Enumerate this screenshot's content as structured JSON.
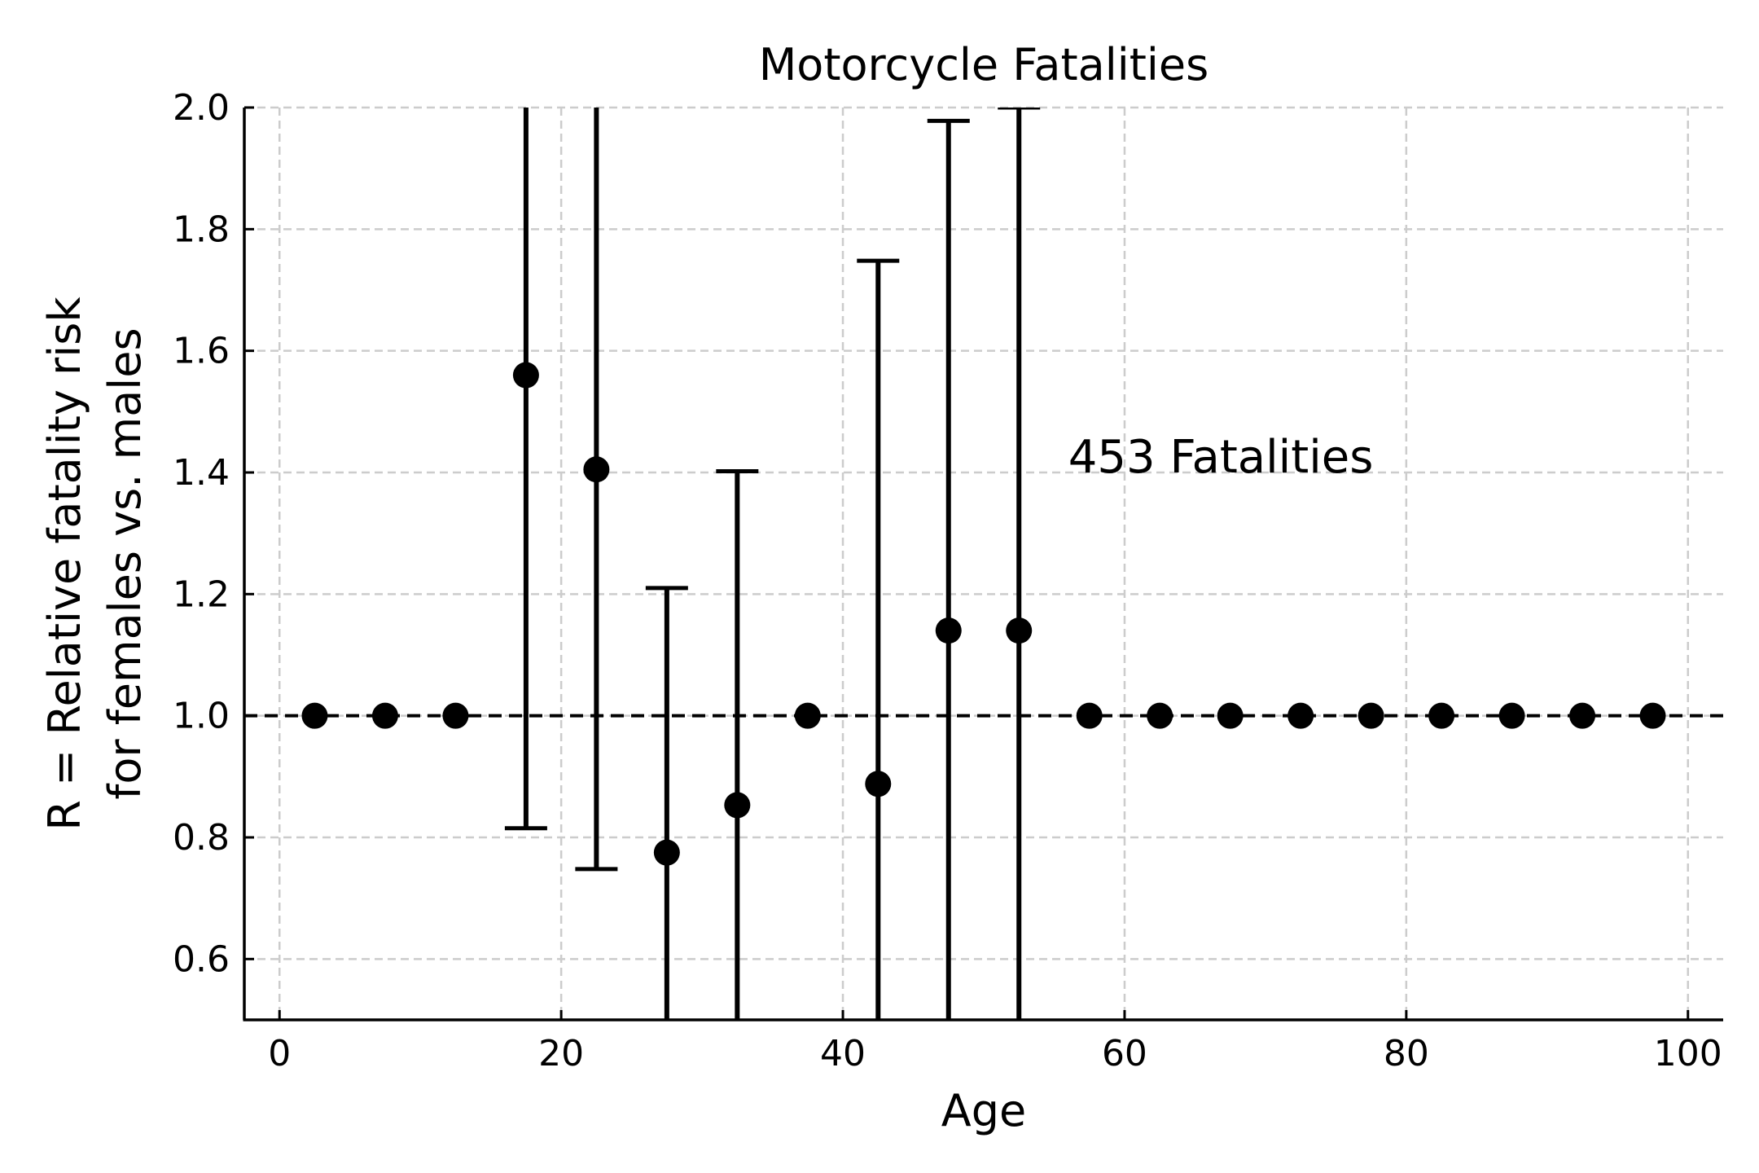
{
  "chart_data": {
    "type": "scatter",
    "title": "Motorcycle Fatalities",
    "xlabel": "Age",
    "ylabel_lines": [
      "R = Relative fatality risk",
      "for females vs. males"
    ],
    "xlim": [
      -2.5,
      102.5
    ],
    "ylim": [
      0.5,
      2.0
    ],
    "xticks": [
      0,
      20,
      40,
      60,
      80,
      100
    ],
    "xtick_labels": [
      "0",
      "20",
      "40",
      "60",
      "80",
      "100"
    ],
    "yticks": [
      0.6,
      0.8,
      1.0,
      1.2,
      1.4,
      1.6,
      1.8,
      2.0
    ],
    "ytick_labels": [
      "0.6",
      "0.8",
      "1.0",
      "1.2",
      "1.4",
      "1.6",
      "1.8",
      "2.0"
    ],
    "grid": true,
    "reference_line": 1.0,
    "annotation": {
      "text": "453 Fatalities",
      "x": 56,
      "y": 1.4
    },
    "colors": {
      "marker": "#000000",
      "grid": "#cccccc",
      "axis": "#000000"
    },
    "points": [
      {
        "x": 2.5,
        "y": 1.0
      },
      {
        "x": 7.5,
        "y": 1.0
      },
      {
        "x": 12.5,
        "y": 1.0
      },
      {
        "x": 17.5,
        "y": 1.56,
        "lower": 0.815,
        "upper": 2.3
      },
      {
        "x": 22.5,
        "y": 1.405,
        "lower": 0.748,
        "upper": 2.3
      },
      {
        "x": 27.5,
        "y": 0.775,
        "lower": 0.3,
        "upper": 1.21
      },
      {
        "x": 32.5,
        "y": 0.853,
        "lower": 0.3,
        "upper": 1.402
      },
      {
        "x": 37.5,
        "y": 1.0
      },
      {
        "x": 42.5,
        "y": 0.888,
        "lower": 0.3,
        "upper": 1.748
      },
      {
        "x": 47.5,
        "y": 1.14,
        "lower": 0.3,
        "upper": 1.978
      },
      {
        "x": 52.5,
        "y": 1.14,
        "lower": 0.3,
        "upper": 2.0
      },
      {
        "x": 57.5,
        "y": 1.0
      },
      {
        "x": 62.5,
        "y": 1.0
      },
      {
        "x": 67.5,
        "y": 1.0
      },
      {
        "x": 72.5,
        "y": 1.0
      },
      {
        "x": 77.5,
        "y": 1.0
      },
      {
        "x": 82.5,
        "y": 1.0
      },
      {
        "x": 87.5,
        "y": 1.0
      },
      {
        "x": 92.5,
        "y": 1.0
      },
      {
        "x": 97.5,
        "y": 1.0
      }
    ]
  }
}
